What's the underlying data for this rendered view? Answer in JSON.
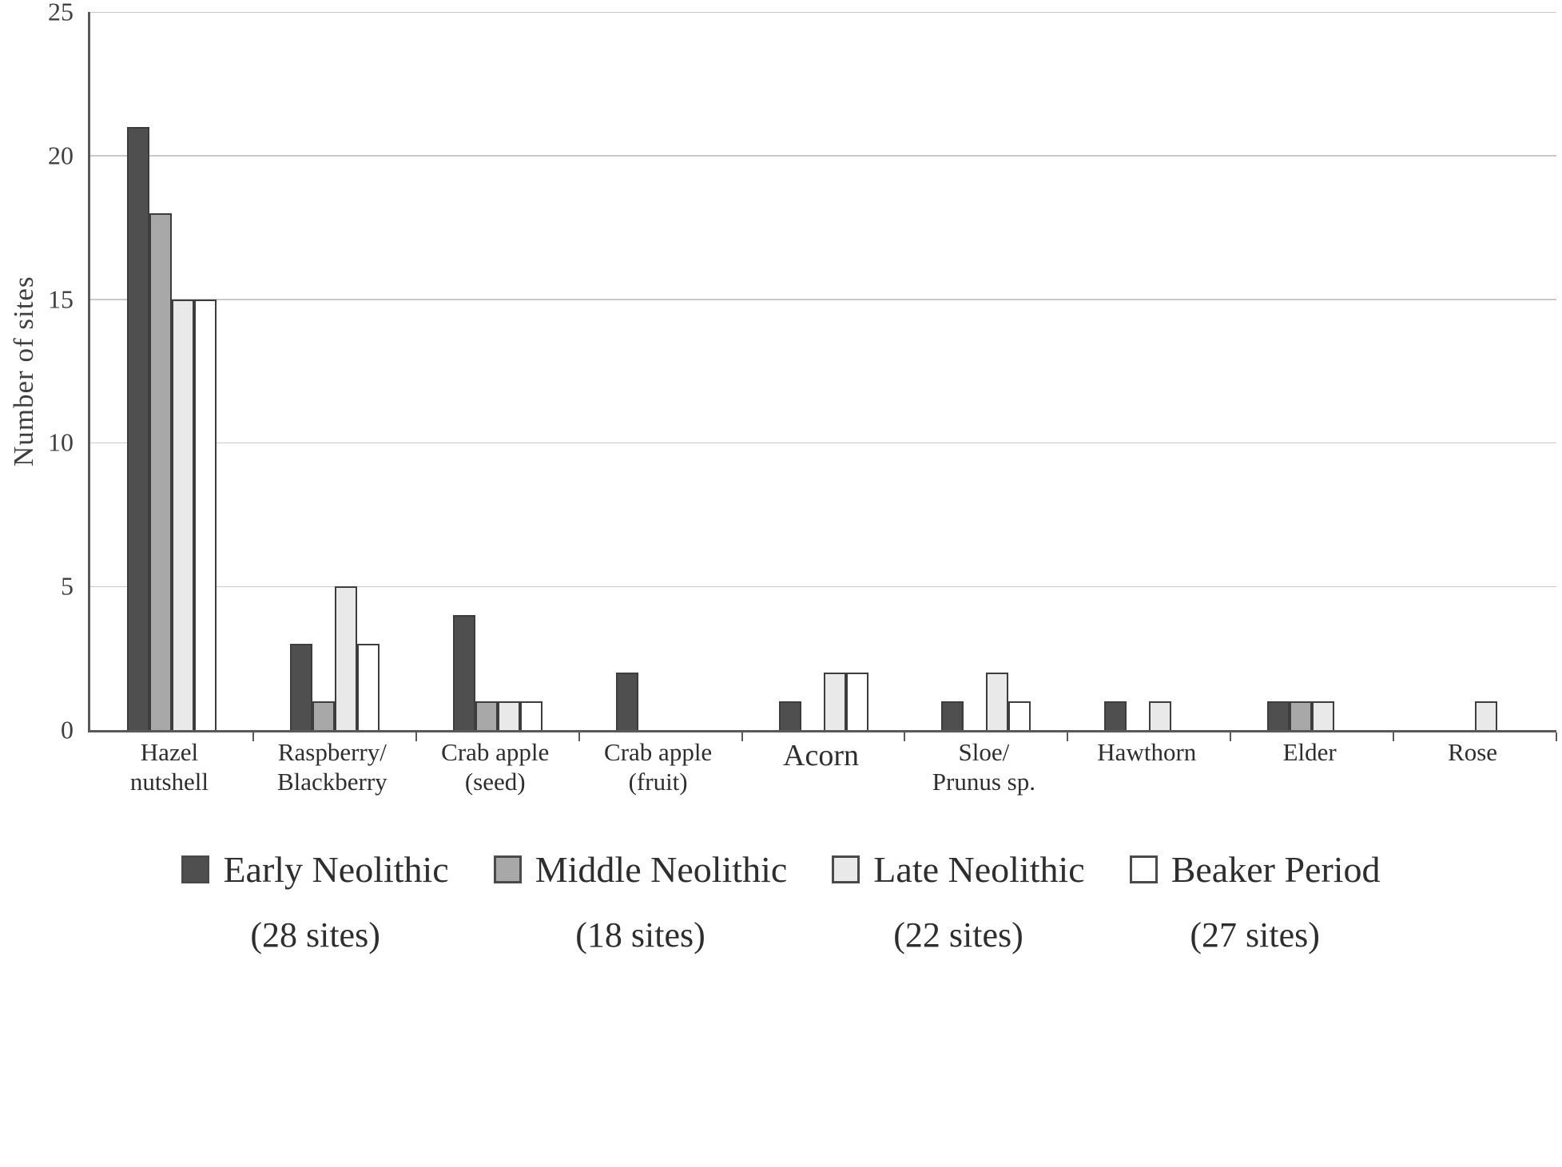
{
  "chart_data": {
    "type": "bar",
    "title": "",
    "xlabel": "",
    "ylabel": "Number of sites",
    "ylim": [
      0,
      25
    ],
    "yticks": [
      0,
      5,
      10,
      15,
      20,
      25
    ],
    "grid": true,
    "legend_position": "bottom",
    "categories": [
      "Hazel\nnutshell",
      "Raspberry/\nBlackberry",
      "Crab apple\n(seed)",
      "Crab apple\n(fruit)",
      "Acorn",
      "Sloe/\nPrunus sp.",
      "Hawthorn",
      "Elder",
      "Rose"
    ],
    "series": [
      {
        "name": "Early Neolithic",
        "sites_label": "(28 sites)",
        "color": "#4f4f4f",
        "values": [
          21,
          3,
          4,
          2,
          1,
          1,
          1,
          1,
          0
        ]
      },
      {
        "name": "Middle Neolithic",
        "sites_label": "(18 sites)",
        "color": "#a8a8a8",
        "values": [
          18,
          1,
          1,
          0,
          0,
          0,
          0,
          1,
          0
        ]
      },
      {
        "name": "Late Neolithic",
        "sites_label": "(22 sites)",
        "color": "#e9e9e9",
        "values": [
          15,
          5,
          1,
          0,
          2,
          2,
          1,
          1,
          1
        ]
      },
      {
        "name": "Beaker Period",
        "sites_label": "(27 sites)",
        "color": "#ffffff",
        "values": [
          15,
          3,
          1,
          0,
          2,
          1,
          0,
          0,
          0
        ]
      }
    ]
  }
}
